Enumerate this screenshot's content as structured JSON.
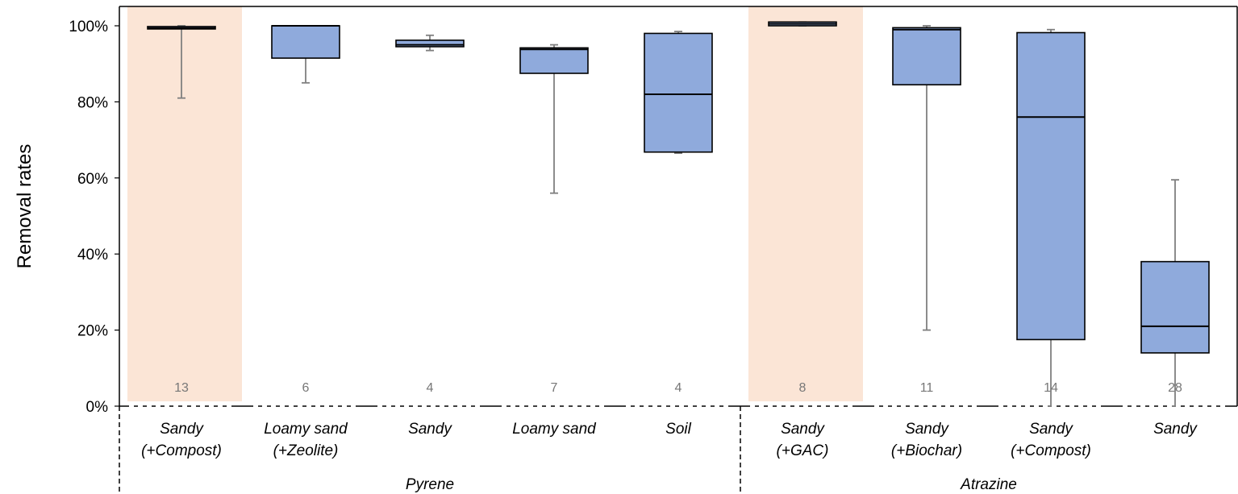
{
  "chart_data": {
    "type": "box",
    "ylabel": "Removal rates",
    "ylim": [
      0,
      100
    ],
    "y_ticks": [
      "0%",
      "20%",
      "40%",
      "60%",
      "80%",
      "100%"
    ],
    "y_tick_values": [
      0,
      20,
      40,
      60,
      80,
      100
    ],
    "groups": [
      {
        "name": "Pyrene",
        "start": 0,
        "end": 4
      },
      {
        "name": "Atrazine",
        "start": 5,
        "end": 8
      }
    ],
    "colors": {
      "box": "#8faadc",
      "highlight": "#fbe5d6",
      "whisker": "#7f7f7f"
    },
    "categories": [
      {
        "label_lines": [
          "Sandy",
          "(+Compost)"
        ],
        "n": "13",
        "highlight": true,
        "min": 81,
        "q1": 99.2,
        "median": 99.4,
        "q3": 99.8,
        "max": 100
      },
      {
        "label_lines": [
          "Loamy sand",
          "(+Zeolite)"
        ],
        "n": "6",
        "highlight": false,
        "min": 85,
        "q1": 91.5,
        "median": 100,
        "q3": 100,
        "max": 100
      },
      {
        "label_lines": [
          "Sandy"
        ],
        "n": "4",
        "highlight": false,
        "min": 93.5,
        "q1": 94.5,
        "median": 95,
        "q3": 96.2,
        "max": 97.5
      },
      {
        "label_lines": [
          "Loamy sand"
        ],
        "n": "7",
        "highlight": false,
        "min": 56,
        "q1": 87.5,
        "median": 93.8,
        "q3": 94.2,
        "max": 95
      },
      {
        "label_lines": [
          "Soil"
        ],
        "n": "4",
        "highlight": false,
        "min": 66.5,
        "q1": 66.8,
        "median": 82,
        "q3": 98,
        "max": 98.5
      },
      {
        "label_lines": [
          "Sandy",
          "(+GAC)"
        ],
        "n": "8",
        "highlight": true,
        "min": 100,
        "q1": 100,
        "median": 100.5,
        "q3": 101,
        "max": 101
      },
      {
        "label_lines": [
          "Sandy",
          "(+Biochar)"
        ],
        "n": "11",
        "highlight": false,
        "min": 20,
        "q1": 84.5,
        "median": 99,
        "q3": 99.5,
        "max": 100
      },
      {
        "label_lines": [
          "Sandy",
          "(+Compost)"
        ],
        "n": "14",
        "highlight": false,
        "min": 0,
        "q1": 17.5,
        "median": 76,
        "q3": 98.2,
        "max": 99
      },
      {
        "label_lines": [
          "Sandy"
        ],
        "n": "28",
        "highlight": false,
        "min": 0,
        "q1": 14,
        "median": 21,
        "q3": 38,
        "max": 59.5
      }
    ]
  }
}
